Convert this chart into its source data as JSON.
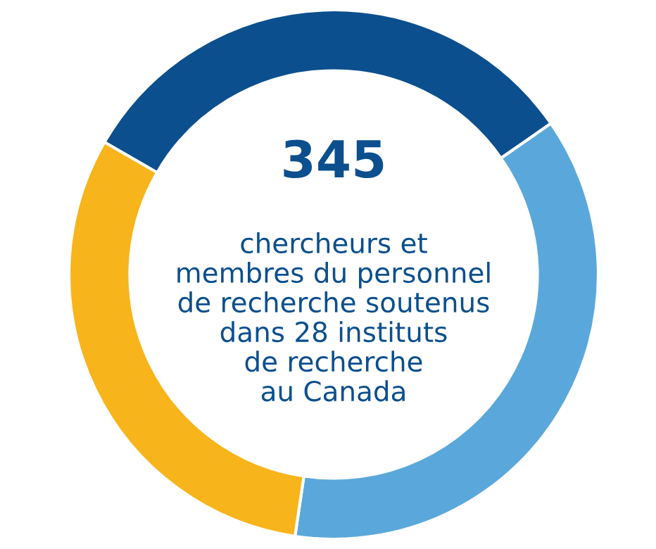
{
  "chart_data": {
    "type": "donut",
    "categories": [
      null,
      null,
      null
    ],
    "values": [
      32,
      37,
      31
    ],
    "colors": [
      "#0c4f8e",
      "#5aa8db",
      "#f8b41b"
    ],
    "annotations": [
      "345",
      "chercheurs et\nmembres du personnel\nde recherche soutenus\ndans 28 instituts\nde recherche\nau Canada"
    ]
  }
}
